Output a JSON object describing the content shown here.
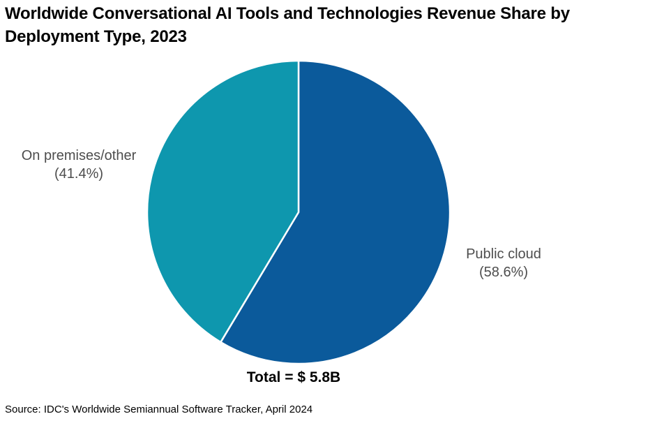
{
  "header": {
    "title_lines": [
      "Worldwide Conversational AI Tools and Technologies Revenue Share by",
      "Deployment Type, 2023"
    ]
  },
  "chart_data": {
    "type": "pie",
    "title": "Worldwide Conversational AI Tools and Technologies Revenue Share by Deployment Type, 2023",
    "total_label": "Total = $ 5.8B",
    "total_value_billion_usd": 5.8,
    "year": "2023",
    "start_angle_deg": 0,
    "direction": "clockwise",
    "slice_border_color": "#ffffff",
    "slices": [
      {
        "label": "Public cloud",
        "value_pct": 58.6,
        "pct_label": "(58.6%)",
        "color": "#0b5a9b"
      },
      {
        "label": "On premises/other",
        "value_pct": 41.4,
        "pct_label": "(41.4%)",
        "color": "#0e97ae"
      }
    ]
  },
  "footer": {
    "source": "Source: IDC's Worldwide Semiannual Software Tracker, April 2024"
  }
}
